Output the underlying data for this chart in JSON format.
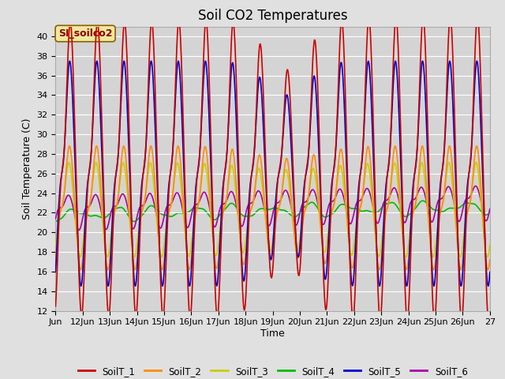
{
  "title": "Soil CO2 Temperatures",
  "xlabel": "Time",
  "ylabel": "Soil Temperature (C)",
  "ylim": [
    12,
    41
  ],
  "yticks": [
    12,
    14,
    16,
    18,
    20,
    22,
    24,
    26,
    28,
    30,
    32,
    34,
    36,
    38,
    40
  ],
  "xlim_days": [
    11,
    27
  ],
  "xtick_days": [
    11,
    12,
    13,
    14,
    15,
    16,
    17,
    18,
    19,
    20,
    21,
    22,
    23,
    24,
    25,
    26,
    27
  ],
  "xtick_labels": [
    "Jun",
    "12Jun",
    "13Jun",
    "14Jun",
    "15Jun",
    "16Jun",
    "17Jun",
    "18Jun",
    "19Jun",
    "20Jun",
    "21Jun",
    "22Jun",
    "23Jun",
    "24Jun",
    "25Jun",
    "26Jun",
    "27"
  ],
  "series_colors": {
    "SoilT_1": "#cc0000",
    "SoilT_2": "#ff8c00",
    "SoilT_3": "#cccc00",
    "SoilT_4": "#00bb00",
    "SoilT_5": "#0000cc",
    "SoilT_6": "#aa00aa"
  },
  "annotation_text": "SI_soilco2",
  "bg_color": "#e0e0e0",
  "plot_bg_color": "#d4d4d4",
  "linewidth": 1.2
}
